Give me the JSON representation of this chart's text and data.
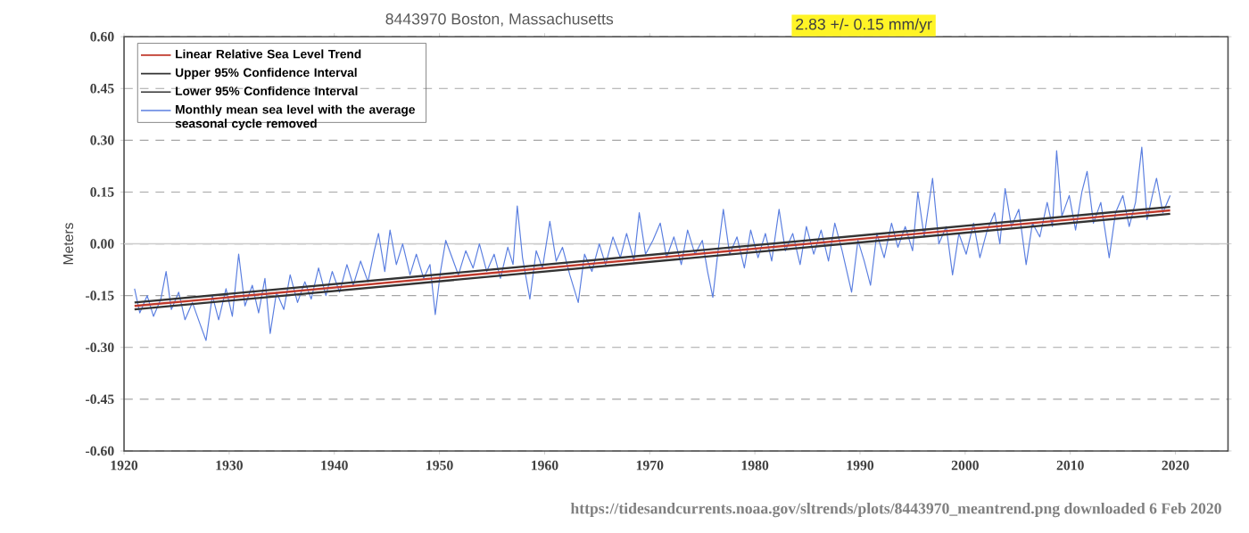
{
  "chart_data": {
    "type": "line",
    "title": "8443970 Boston, Massachusetts",
    "subtitle": "2.83 +/-  0.15 mm/yr",
    "ylabel": "Meters",
    "annotations": [
      "https://tidesandcurrents.noaa.gov/sltrends/plots/8443970_meantrend.png  downloaded 6 Feb 2020"
    ],
    "xlim": [
      1920,
      2025
    ],
    "xticks": [
      1920,
      1930,
      1940,
      1950,
      1960,
      1970,
      1980,
      1990,
      2000,
      2010,
      2020
    ],
    "ylim": [
      -0.6,
      0.6
    ],
    "yticks": [
      {
        "value": -0.6,
        "label": "-0.60"
      },
      {
        "value": -0.45,
        "label": "-0.45"
      },
      {
        "value": -0.3,
        "label": "-0.30"
      },
      {
        "value": -0.15,
        "label": "-0.15"
      },
      {
        "value": 0,
        "label": "0.00"
      },
      {
        "value": 0.15,
        "label": "0.15"
      },
      {
        "value": 0.3,
        "label": "0.30"
      },
      {
        "value": 0.45,
        "label": "0.45"
      },
      {
        "value": 0.6,
        "label": "0.60"
      }
    ],
    "grid": "y",
    "legend": "top left",
    "marker": "none",
    "line_style": "solid",
    "ref_lines": [
      {
        "axis": "y",
        "value": 0,
        "color": "#cccccc",
        "line_style": "solid"
      }
    ],
    "series": [
      {
        "name": "Linear Relative Sea Level Trend",
        "color": "#c0392b",
        "x": [
          1921.0,
          2019.5
        ],
        "values": [
          -0.18,
          0.097
        ]
      },
      {
        "name": "Upper 95% Confidence Interval",
        "color": "#333333",
        "x": [
          1921.0,
          2019.5
        ],
        "values": [
          -0.17,
          0.107
        ]
      },
      {
        "name": "Lower 95% Confidence Interval",
        "color": "#333333",
        "x": [
          1921.0,
          2019.5
        ],
        "values": [
          -0.19,
          0.087
        ]
      },
      {
        "name": "Monthly mean sea level with the average seasonal cycle removed",
        "color": "#5b7fe0",
        "x": [
          1921.0,
          1921.5,
          1922.2,
          1922.8,
          1923.5,
          1924.0,
          1924.5,
          1925.2,
          1925.8,
          1926.5,
          1927.2,
          1927.8,
          1928.4,
          1929.0,
          1929.7,
          1930.3,
          1930.9,
          1931.5,
          1932.2,
          1932.8,
          1933.4,
          1933.9,
          1934.5,
          1935.2,
          1935.8,
          1936.5,
          1937.2,
          1937.8,
          1938.5,
          1939.2,
          1939.8,
          1940.5,
          1941.2,
          1941.8,
          1942.5,
          1943.2,
          1943.8,
          1944.2,
          1944.8,
          1945.3,
          1945.9,
          1946.5,
          1947.2,
          1947.8,
          1948.5,
          1949.1,
          1949.6,
          1950.1,
          1950.6,
          1951.2,
          1951.8,
          1952.5,
          1953.2,
          1953.8,
          1954.5,
          1955.2,
          1955.8,
          1956.5,
          1957.0,
          1957.4,
          1957.9,
          1958.6,
          1959.2,
          1959.8,
          1960.5,
          1961.1,
          1961.7,
          1962.4,
          1963.2,
          1963.8,
          1964.5,
          1965.2,
          1965.8,
          1966.5,
          1967.2,
          1967.8,
          1968.5,
          1969.0,
          1969.6,
          1970.3,
          1971.0,
          1971.6,
          1972.3,
          1973.0,
          1973.6,
          1974.3,
          1975.0,
          1975.5,
          1976.0,
          1976.5,
          1977.0,
          1977.6,
          1978.3,
          1979.0,
          1979.6,
          1980.3,
          1981.0,
          1981.6,
          1982.3,
          1982.9,
          1983.6,
          1984.3,
          1984.9,
          1985.6,
          1986.3,
          1987.0,
          1987.6,
          1988.3,
          1989.2,
          1989.8,
          1990.4,
          1991.0,
          1991.6,
          1992.3,
          1993.0,
          1993.6,
          1994.3,
          1995.0,
          1995.5,
          1996.1,
          1996.9,
          1997.5,
          1998.2,
          1998.8,
          1999.4,
          2000.1,
          2000.8,
          2001.4,
          2002.1,
          2002.8,
          2003.3,
          2003.8,
          2004.4,
          2005.1,
          2005.8,
          2006.4,
          2007.1,
          2007.8,
          2008.3,
          2008.7,
          2009.2,
          2009.9,
          2010.5,
          2011.1,
          2011.6,
          2012.2,
          2012.9,
          2013.7,
          2014.3,
          2015.0,
          2015.6,
          2016.2,
          2016.8,
          2017.3,
          2017.8,
          2018.2,
          2018.8,
          2019.5
        ],
        "values": [
          -0.13,
          -0.2,
          -0.15,
          -0.21,
          -0.16,
          -0.08,
          -0.19,
          -0.14,
          -0.22,
          -0.17,
          -0.23,
          -0.28,
          -0.15,
          -0.22,
          -0.13,
          -0.21,
          -0.03,
          -0.18,
          -0.12,
          -0.2,
          -0.1,
          -0.26,
          -0.14,
          -0.19,
          -0.09,
          -0.17,
          -0.11,
          -0.16,
          -0.07,
          -0.15,
          -0.08,
          -0.14,
          -0.06,
          -0.12,
          -0.05,
          -0.11,
          -0.02,
          0.03,
          -0.08,
          0.04,
          -0.06,
          0.0,
          -0.09,
          -0.03,
          -0.1,
          -0.06,
          -0.205,
          -0.08,
          0.01,
          -0.04,
          -0.09,
          -0.02,
          -0.07,
          0.0,
          -0.08,
          -0.03,
          -0.1,
          -0.01,
          -0.06,
          0.11,
          -0.04,
          -0.16,
          -0.02,
          -0.07,
          0.065,
          -0.05,
          -0.01,
          -0.09,
          -0.17,
          -0.03,
          -0.08,
          0.0,
          -0.06,
          0.02,
          -0.04,
          0.03,
          -0.05,
          0.09,
          -0.03,
          0.01,
          0.06,
          -0.04,
          0.02,
          -0.06,
          0.04,
          -0.03,
          0.01,
          -0.08,
          -0.155,
          -0.02,
          0.1,
          -0.03,
          0.02,
          -0.07,
          0.04,
          -0.04,
          0.03,
          -0.05,
          0.1,
          -0.02,
          0.03,
          -0.06,
          0.05,
          -0.03,
          0.04,
          -0.05,
          0.06,
          -0.02,
          -0.14,
          0.01,
          -0.05,
          -0.12,
          0.03,
          -0.04,
          0.06,
          -0.01,
          0.05,
          -0.02,
          0.15,
          0.02,
          0.19,
          0.0,
          0.05,
          -0.09,
          0.03,
          -0.03,
          0.06,
          -0.04,
          0.04,
          0.09,
          0.0,
          0.16,
          0.05,
          0.1,
          -0.06,
          0.06,
          0.02,
          0.12,
          0.05,
          0.27,
          0.08,
          0.14,
          0.04,
          0.15,
          0.21,
          0.06,
          0.12,
          -0.04,
          0.09,
          0.14,
          0.05,
          0.12,
          0.28,
          0.07,
          0.14,
          0.19,
          0.09,
          0.14
        ]
      }
    ]
  }
}
